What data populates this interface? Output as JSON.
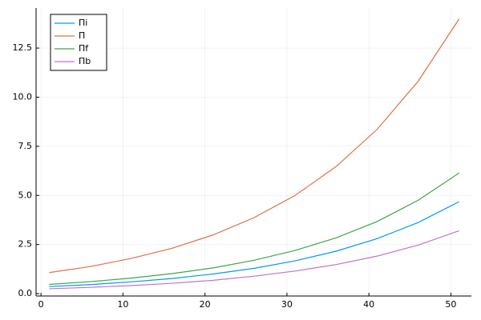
{
  "chart_data": {
    "type": "line",
    "x": [
      1,
      6,
      11,
      16,
      21,
      26,
      31,
      36,
      41,
      46,
      51
    ],
    "series": [
      {
        "name": "Πi",
        "color": "#009af9",
        "values": [
          0.36,
          0.46,
          0.6,
          0.77,
          1.0,
          1.29,
          1.67,
          2.16,
          2.8,
          3.62,
          4.68
        ]
      },
      {
        "name": "Π",
        "color": "#e26f46",
        "values": [
          1.07,
          1.38,
          1.79,
          2.31,
          2.99,
          3.87,
          5.0,
          6.47,
          8.36,
          10.81,
          13.98
        ]
      },
      {
        "name": "Πf",
        "color": "#3ea44e",
        "values": [
          0.47,
          0.61,
          0.79,
          1.02,
          1.31,
          1.7,
          2.2,
          2.84,
          3.67,
          4.75,
          6.14
        ]
      },
      {
        "name": "Πb",
        "color": "#c271d2",
        "values": [
          0.25,
          0.32,
          0.41,
          0.53,
          0.68,
          0.89,
          1.15,
          1.48,
          1.91,
          2.47,
          3.2
        ]
      }
    ],
    "xlim": [
      -0.6,
      52.5
    ],
    "ylim": [
      -0.12,
      14.54
    ],
    "xticks": [
      0,
      10,
      20,
      30,
      40,
      50
    ],
    "yticks": [
      {
        "value": 0,
        "label": "0.0"
      },
      {
        "value": 2.5,
        "label": "2.5"
      },
      {
        "value": 5,
        "label": "5.0"
      },
      {
        "value": 7.5,
        "label": "7.5"
      },
      {
        "value": 10,
        "label": "10.0"
      },
      {
        "value": 12.5,
        "label": "12.5"
      }
    ],
    "grid": true,
    "legend": "top-left"
  }
}
